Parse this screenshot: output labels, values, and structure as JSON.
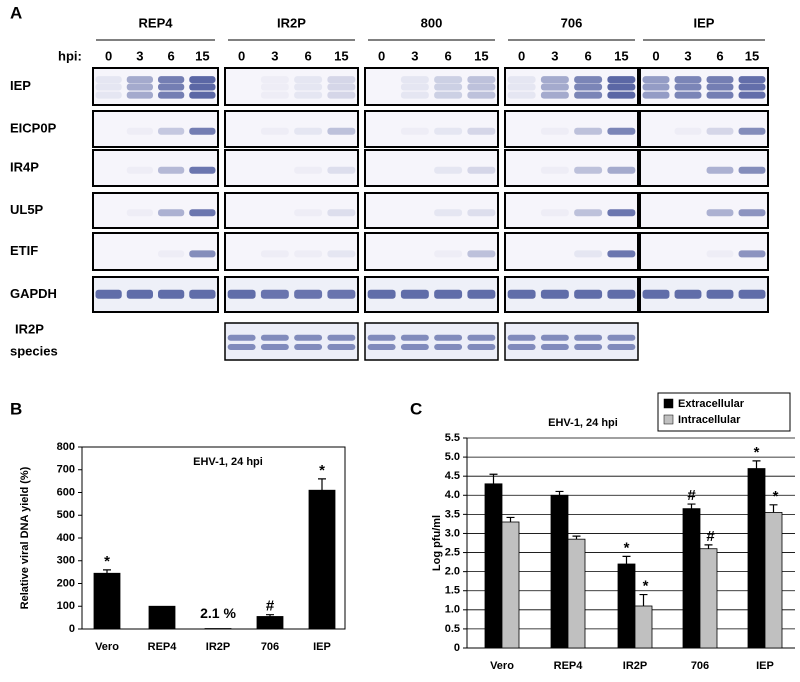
{
  "panel_a": {
    "label": "A",
    "groups": [
      "REP4",
      "IR2P",
      "800",
      "706",
      "IEP"
    ],
    "hpi_label": "hpi:",
    "timepoints": [
      "0",
      "3",
      "6",
      "15"
    ],
    "rows": [
      "IEP",
      "EICP0P",
      "IR4P",
      "UL5P",
      "ETIF",
      "GAPDH"
    ],
    "species_label": [
      "IR2P",
      "species"
    ]
  },
  "chart_data": [
    {
      "type": "bar",
      "panel": "B",
      "title": "EHV-1, 24 hpi",
      "y_label": "Relative viral DNA yield (%)",
      "categories": [
        "Vero",
        "REP4",
        "IR2P",
        "706",
        "IEP"
      ],
      "values": [
        245,
        100,
        2.1,
        55,
        610
      ],
      "errors": [
        15,
        0,
        0,
        8,
        50
      ],
      "value_labels": [
        null,
        null,
        "2.1 %",
        null,
        null
      ],
      "markers": [
        "*",
        null,
        null,
        "#",
        "*"
      ],
      "color": "#000000",
      "ylim": [
        0,
        800
      ],
      "yticks": [
        0,
        100,
        200,
        300,
        400,
        500,
        600,
        700,
        800
      ]
    },
    {
      "type": "bar",
      "panel": "C",
      "title": "EHV-1, 24 hpi",
      "y_label": "Log pfu/ml",
      "categories": [
        "Vero",
        "REP4",
        "IR2P",
        "706",
        "IEP"
      ],
      "series": [
        {
          "name": "Extracellular",
          "color": "#000000",
          "values": [
            4.3,
            4.0,
            2.2,
            3.65,
            4.7
          ],
          "errors": [
            0.25,
            0.1,
            0.2,
            0.12,
            0.2
          ],
          "markers": [
            null,
            null,
            "*",
            "#",
            "*"
          ]
        },
        {
          "name": "Intracellular",
          "color": "#c0c0c0",
          "values": [
            3.3,
            2.85,
            1.1,
            2.6,
            3.55
          ],
          "errors": [
            0.12,
            0.08,
            0.3,
            0.1,
            0.2
          ],
          "markers": [
            null,
            null,
            "*",
            "#",
            "*"
          ]
        }
      ],
      "ylim": [
        0,
        5.5
      ],
      "yticks": [
        0,
        0.5,
        {
          "value": 1,
          "label": "1.0"
        },
        1.5,
        {
          "value": 2,
          "label": "2.0"
        },
        2.5,
        {
          "value": 3,
          "label": "3.0"
        },
        3.5,
        {
          "value": 4,
          "label": "4.0"
        },
        4.5,
        {
          "value": 5,
          "label": "5.0"
        },
        5.5
      ],
      "grid": true,
      "legend": "top-right"
    }
  ]
}
